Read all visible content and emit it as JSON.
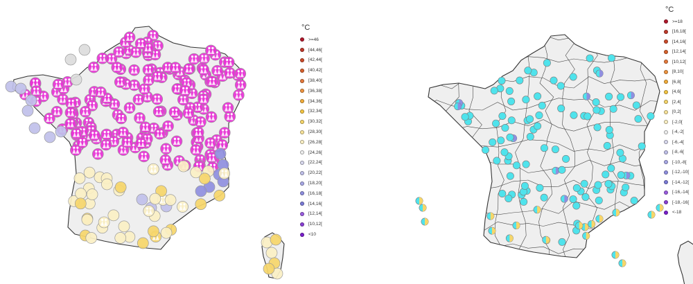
{
  "left_map": {
    "legend": {
      "unit": "°C",
      "items": [
        {
          "label": ">=46",
          "color": "#b2182b"
        },
        {
          "label": "[44,46[",
          "color": "#c0392b"
        },
        {
          "label": "[42,44[",
          "color": "#cc4c2a"
        },
        {
          "label": "[40,42[",
          "color": "#d8612c"
        },
        {
          "label": "[38,40[",
          "color": "#e57a3c"
        },
        {
          "label": "[36,38[",
          "color": "#ee9440"
        },
        {
          "label": "[34,36[",
          "color": "#f2ad3a"
        },
        {
          "label": "[32,34[",
          "color": "#f4c542"
        },
        {
          "label": "[30,32[",
          "color": "#f6d66a"
        },
        {
          "label": "[28,30[",
          "color": "#f8e39a"
        },
        {
          "label": "[26,28[",
          "color": "#fbf0c4"
        },
        {
          "label": "[24,26[",
          "color": "#eeeeee"
        },
        {
          "label": "[22,24[",
          "color": "#d9d9ee"
        },
        {
          "label": "[20,22[",
          "color": "#c0c0ea"
        },
        {
          "label": "[18,20[",
          "color": "#a8a8e6"
        },
        {
          "label": "[16,18[",
          "color": "#8f8fe0"
        },
        {
          "label": "[14,16[",
          "color": "#7a7ad8"
        },
        {
          "label": "[12,14[",
          "color": "#9a5ce0"
        },
        {
          "label": "[10,12[",
          "color": "#8a3fd6"
        },
        {
          "label": "<10",
          "color": "#7a1fce"
        }
      ]
    },
    "markers": {
      "magenta_color": "#e831d6",
      "pale_yellow_color": "#fbf0c4",
      "yellow_color": "#f6d66a",
      "grey_color": "#dcdcdc",
      "lavender_color": "#c0c0ea",
      "blue_color": "#8f8fe0"
    }
  },
  "right_map": {
    "legend": {
      "unit": "°C",
      "items": [
        {
          "label": ">=18",
          "color": "#b2182b"
        },
        {
          "label": "[16,18[",
          "color": "#c0392b"
        },
        {
          "label": "[14,16[",
          "color": "#cc4c2a"
        },
        {
          "label": "[12,14[",
          "color": "#d8612c"
        },
        {
          "label": "[10,12[",
          "color": "#e57a3c"
        },
        {
          "label": "[8,10[",
          "color": "#ee9440"
        },
        {
          "label": "[6,8[",
          "color": "#f2ad3a"
        },
        {
          "label": "[4,6[",
          "color": "#f4c542"
        },
        {
          "label": "[2,4[",
          "color": "#f6d66a"
        },
        {
          "label": "[0,2[",
          "color": "#f8e39a"
        },
        {
          "label": "[-2,0[",
          "color": "#fbf0c4"
        },
        {
          "label": "[-4,-2[",
          "color": "#eeeeee"
        },
        {
          "label": "[-6,-4[",
          "color": "#d9d9ee"
        },
        {
          "label": "[-8,-6[",
          "color": "#c0c0ea"
        },
        {
          "label": "[-10,-8[",
          "color": "#a8a8e6"
        },
        {
          "label": "[-12,-10[",
          "color": "#8f8fe0"
        },
        {
          "label": "[-14,-12[",
          "color": "#7a7ad8"
        },
        {
          "label": "[-16,-14[",
          "color": "#9a5ce0"
        },
        {
          "label": "[-18,-16[",
          "color": "#8a3fd6"
        },
        {
          "label": "<-18",
          "color": "#7a1fce"
        }
      ]
    },
    "markers": {
      "cyan_color": "#4fe3ec",
      "yellow_color": "#f6d66a",
      "blue_color": "#8f8fe0"
    }
  },
  "map_style": {
    "land_fill": "#efefef",
    "border_color": "#333333",
    "dept_border_color": "#444444"
  }
}
